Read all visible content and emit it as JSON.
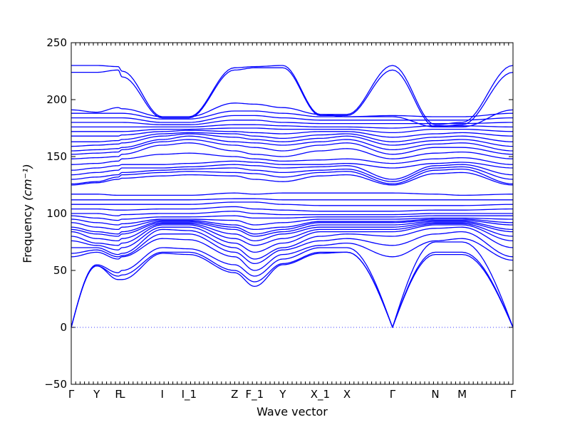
{
  "chart_data": {
    "type": "line",
    "title": "",
    "xlabel": "Wave vector",
    "ylabel": "Frequency ",
    "ylabel_unit": "(cm⁻¹)",
    "ylim": [
      -50,
      250
    ],
    "yticks": [
      -50,
      0,
      50,
      100,
      150,
      200,
      250
    ],
    "grid": false,
    "line_color": "#0000ff",
    "zero_line": 0,
    "k_labels": [
      {
        "label": "Γ",
        "x": 0
      },
      {
        "label": "Y",
        "x": 0.95
      },
      {
        "label": "F",
        "x": 1.75
      },
      {
        "label": "L",
        "x": 1.9
      },
      {
        "label": "I",
        "x": 3.4
      },
      {
        "label": "I_1",
        "x": 4.4
      },
      {
        "label": "Z",
        "x": 6.1
      },
      {
        "label": "F_1",
        "x": 6.85
      },
      {
        "label": "Y",
        "x": 7.9
      },
      {
        "label": "X_1",
        "x": 9.3
      },
      {
        "label": "X",
        "x": 10.3
      },
      {
        "label": "Γ",
        "x": 12.0
      },
      {
        "label": "N",
        "x": 13.6
      },
      {
        "label": "M",
        "x": 14.6
      },
      {
        "label": "Γ",
        "x": 16.5
      }
    ],
    "xlim": [
      0,
      16.5
    ],
    "series": [
      {
        "values": [
          0,
          54,
          42,
          42,
          65,
          64,
          48,
          36,
          55,
          65,
          66,
          0,
          64,
          64,
          0
        ]
      },
      {
        "values": [
          0,
          54,
          45,
          46,
          66,
          66,
          50,
          40,
          56,
          66,
          66,
          0,
          66,
          66,
          0
        ]
      },
      {
        "values": [
          0,
          55,
          48,
          50,
          70,
          69,
          55,
          45,
          60,
          70,
          70,
          0,
          75,
          75,
          0
        ]
      },
      {
        "values": [
          62,
          66,
          60,
          62,
          78,
          77,
          62,
          50,
          64,
          72,
          74,
          62,
          76,
          78,
          59
        ]
      },
      {
        "values": [
          65,
          68,
          62,
          63,
          82,
          82,
          66,
          56,
          68,
          76,
          78,
          72,
          82,
          84,
          62
        ]
      },
      {
        "values": [
          70,
          70,
          64,
          65,
          86,
          85,
          70,
          60,
          70,
          80,
          82,
          80,
          87,
          88,
          70
        ]
      },
      {
        "values": [
          76,
          72,
          68,
          70,
          88,
          88,
          74,
          66,
          74,
          84,
          84,
          84,
          90,
          90,
          76
        ]
      },
      {
        "values": [
          80,
          74,
          72,
          74,
          90,
          90,
          78,
          72,
          78,
          86,
          86,
          86,
          91,
          91,
          80
        ]
      },
      {
        "values": [
          84,
          78,
          76,
          78,
          91,
          91,
          82,
          76,
          82,
          88,
          88,
          88,
          92,
          92,
          84
        ]
      },
      {
        "values": [
          86,
          82,
          80,
          82,
          92,
          92,
          86,
          80,
          84,
          90,
          90,
          90,
          93,
          93,
          86
        ]
      },
      {
        "values": [
          88,
          84,
          82,
          84,
          93,
          93,
          88,
          82,
          86,
          92,
          92,
          92,
          94,
          94,
          90
        ]
      },
      {
        "values": [
          92,
          88,
          86,
          88,
          94,
          94,
          90,
          86,
          88,
          93,
          93,
          93,
          95,
          95,
          92
        ]
      },
      {
        "values": [
          95,
          92,
          90,
          91,
          95,
          95,
          94,
          90,
          92,
          95,
          95,
          95,
          96,
          96,
          95
        ]
      },
      {
        "values": [
          98,
          96,
          94,
          95,
          97,
          97,
          98,
          96,
          96,
          97,
          97,
          97,
          98,
          98,
          98
        ]
      },
      {
        "values": [
          100,
          100,
          98,
          99,
          100,
          100,
          102,
          100,
          99,
          99,
          99,
          99,
          100,
          100,
          100
        ]
      },
      {
        "values": [
          104,
          104,
          103,
          103,
          104,
          104,
          106,
          104,
          103,
          102,
          102,
          102,
          103,
          103,
          104
        ]
      },
      {
        "values": [
          108,
          108,
          108,
          108,
          108,
          108,
          110,
          110,
          108,
          107,
          107,
          107,
          107,
          107,
          108
        ]
      },
      {
        "values": [
          112,
          112,
          112,
          112,
          112,
          112,
          113,
          113,
          112,
          112,
          112,
          112,
          112,
          112,
          112
        ]
      },
      {
        "values": [
          117,
          117,
          116,
          116,
          116,
          116,
          118,
          117,
          118,
          118,
          118,
          118,
          117,
          116,
          117
        ]
      },
      {
        "values": [
          125,
          127,
          130,
          131,
          133,
          134,
          133,
          130,
          128,
          133,
          134,
          125,
          135,
          136,
          125
        ]
      },
      {
        "values": [
          126,
          128,
          132,
          134,
          136,
          137,
          136,
          135,
          132,
          136,
          137,
          126,
          138,
          139,
          126
        ]
      },
      {
        "values": [
          130,
          132,
          134,
          136,
          138,
          139,
          140,
          138,
          136,
          138,
          139,
          128,
          140,
          141,
          130
        ]
      },
      {
        "values": [
          134,
          136,
          138,
          140,
          140,
          141,
          143,
          142,
          140,
          141,
          142,
          130,
          142,
          143,
          134
        ]
      },
      {
        "values": [
          138,
          140,
          142,
          143,
          143,
          144,
          146,
          145,
          143,
          143,
          144,
          140,
          144,
          145,
          140
        ]
      },
      {
        "values": [
          143,
          144,
          146,
          148,
          152,
          153,
          150,
          148,
          146,
          147,
          148,
          144,
          148,
          149,
          143
        ]
      },
      {
        "values": [
          148,
          149,
          150,
          152,
          160,
          162,
          155,
          152,
          150,
          155,
          157,
          148,
          153,
          154,
          148
        ]
      },
      {
        "values": [
          152,
          153,
          154,
          156,
          163,
          165,
          160,
          158,
          155,
          160,
          162,
          152,
          158,
          158,
          152
        ]
      },
      {
        "values": [
          155,
          156,
          157,
          158,
          165,
          168,
          163,
          162,
          160,
          163,
          165,
          156,
          161,
          162,
          155
        ]
      },
      {
        "values": [
          159,
          160,
          161,
          162,
          168,
          170,
          167,
          165,
          163,
          166,
          168,
          160,
          164,
          165,
          159
        ]
      },
      {
        "values": [
          163,
          163,
          164,
          165,
          170,
          171,
          170,
          168,
          166,
          169,
          170,
          163,
          167,
          168,
          163
        ]
      },
      {
        "values": [
          168,
          168,
          168,
          169,
          172,
          173,
          172,
          171,
          170,
          172,
          172,
          167,
          170,
          171,
          168
        ]
      },
      {
        "values": [
          172,
          172,
          172,
          172,
          174,
          174,
          175,
          175,
          174,
          174,
          174,
          171,
          174,
          174,
          172
        ]
      },
      {
        "values": [
          176,
          176,
          176,
          176,
          176,
          176,
          178,
          178,
          177,
          176,
          176,
          175,
          177,
          177,
          176
        ]
      },
      {
        "values": [
          180,
          180,
          180,
          180,
          178,
          178,
          182,
          182,
          180,
          179,
          179,
          179,
          179,
          179,
          180
        ]
      },
      {
        "values": [
          184,
          184,
          184,
          184,
          180,
          180,
          186,
          186,
          184,
          182,
          182,
          182,
          182,
          182,
          184
        ]
      },
      {
        "values": [
          188,
          188,
          188,
          188,
          183,
          183,
          190,
          190,
          188,
          185,
          185,
          186,
          185,
          185,
          188
        ]
      },
      {
        "values": [
          191,
          189,
          193,
          192,
          185,
          185,
          197,
          196,
          193,
          187,
          185,
          185,
          176,
          176,
          191
        ]
      },
      {
        "values": [
          224,
          224,
          226,
          220,
          184,
          184,
          226,
          228,
          228,
          186,
          186,
          226,
          176,
          178,
          224
        ]
      },
      {
        "values": [
          230,
          230,
          229,
          225,
          185,
          185,
          228,
          229,
          230,
          187,
          187,
          230,
          178,
          180,
          230
        ]
      }
    ]
  }
}
